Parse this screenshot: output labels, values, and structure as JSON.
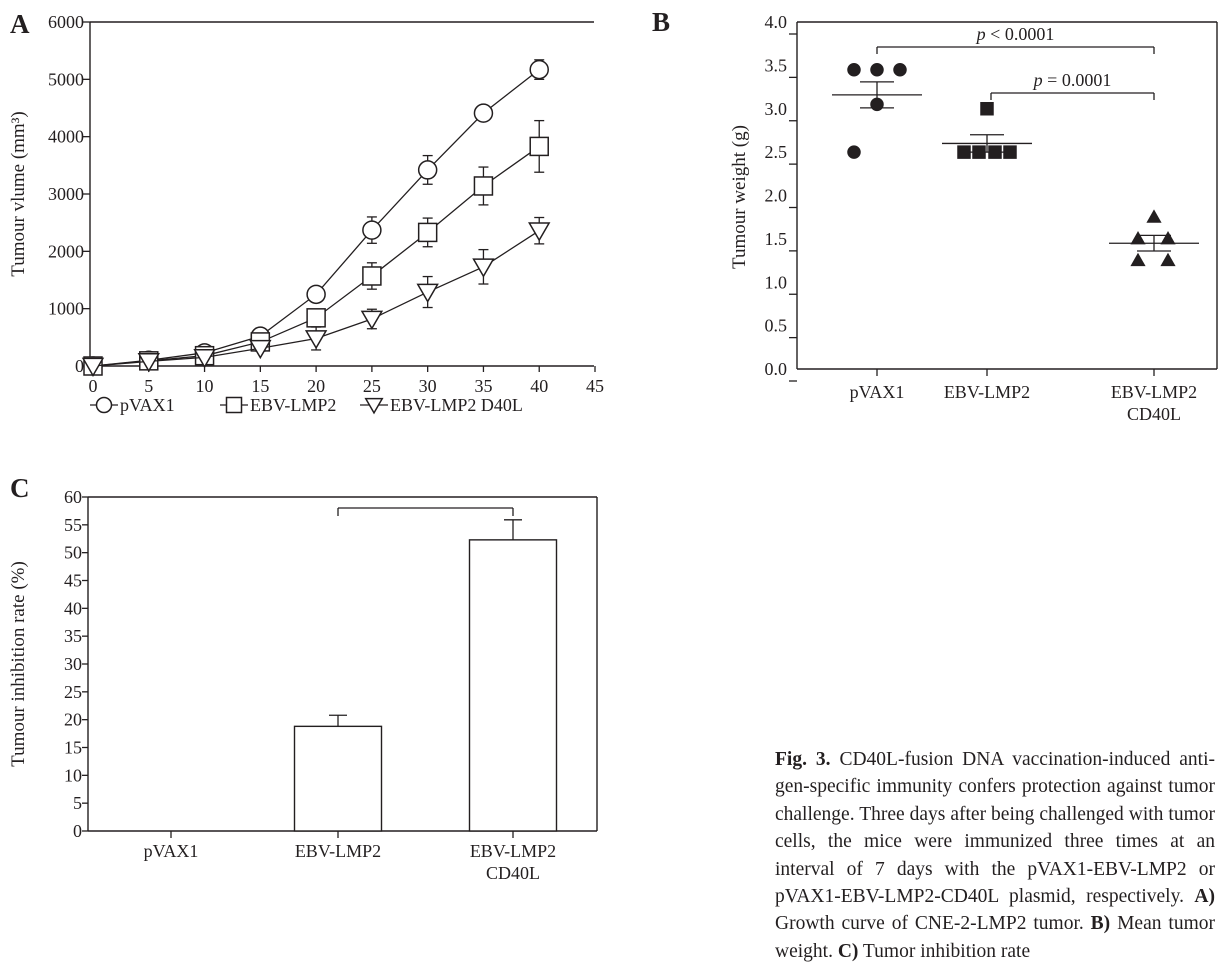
{
  "caption": {
    "label": "Fig. 3.",
    "text": "CD40L-fusion DNA vaccination-induced anti­gen-specific immunity confers protection against tumor challenge. Three days after being challenged with tumor cells, the mice were immunized three times at an interval of 7 days with the pVAX1-EBV-LMP2 or pVAX1-EBV-LMP2-CD40L plasmid, respectively. ",
    "a_label": "A)",
    "a_text": " Growth curve of CNE-2-LMP2 tumor. ",
    "b_label": "B)",
    "b_text": " Mean tumor weight. ",
    "c_label": "C)",
    "c_text": " Tumor inhibition rate"
  },
  "chart_data": [
    {
      "panel": "A",
      "type": "line",
      "ylabel": "Tumour vlume (mm³)",
      "x": [
        0,
        5,
        10,
        15,
        20,
        25,
        30,
        35,
        40
      ],
      "x_ticks": [
        "0",
        "5",
        "10",
        "15",
        "20",
        "25",
        "30",
        "35",
        "40",
        "45"
      ],
      "y_ticks": [
        "0",
        "1000",
        "2000",
        "3000",
        "4000",
        "5000",
        "6000"
      ],
      "xlim": [
        0,
        45
      ],
      "ylim": [
        0,
        6000
      ],
      "legend_position": "bottom",
      "series": [
        {
          "name": "pVAX1",
          "marker": "circle",
          "values": [
            0,
            100,
            230,
            520,
            1250,
            2370,
            3420,
            4410,
            5170
          ],
          "errors": [
            0,
            0,
            30,
            60,
            80,
            230,
            250,
            0,
            170
          ]
        },
        {
          "name": "EBV-LMP2",
          "marker": "square",
          "values": [
            0,
            90,
            180,
            420,
            840,
            1570,
            2330,
            3140,
            3830
          ],
          "errors": [
            0,
            0,
            30,
            70,
            120,
            230,
            250,
            330,
            450
          ]
        },
        {
          "name": "EBV-LMP2 D40L",
          "marker": "triangle-down",
          "values": [
            0,
            80,
            150,
            310,
            480,
            820,
            1290,
            1730,
            2360
          ],
          "errors": [
            0,
            0,
            30,
            50,
            200,
            170,
            270,
            300,
            230
          ]
        }
      ]
    },
    {
      "panel": "B",
      "type": "scatter",
      "ylabel": "Tumour weight (g)",
      "categories": [
        "pVAX1",
        "EBV-LMP2",
        "EBV-LMP2\nCD40L"
      ],
      "y_ticks": [
        "0.0",
        "0.5",
        "1.0",
        "1.5",
        "2.0",
        "2.5",
        "3.0",
        "3.5",
        "4.0"
      ],
      "ylim": [
        0,
        4.0
      ],
      "groups": [
        {
          "name": "pVAX1",
          "marker": "circle",
          "points": [
            3.45,
            3.45,
            3.45,
            3.05,
            2.5
          ],
          "mean": 3.16,
          "sem": 0.15
        },
        {
          "name": "EBV-LMP2",
          "marker": "square",
          "points": [
            3.0,
            2.5,
            2.5,
            2.5,
            2.5
          ],
          "mean": 2.6,
          "sem": 0.1
        },
        {
          "name": "EBV-LMP2 CD40L",
          "marker": "triangle",
          "points": [
            1.75,
            1.5,
            1.5,
            1.25,
            1.25
          ],
          "mean": 1.45,
          "sem": 0.09
        }
      ],
      "annotations": [
        {
          "text": "p < 0.0001",
          "between": [
            0,
            2
          ]
        },
        {
          "text": "p = 0.0001",
          "between": [
            1,
            2
          ]
        }
      ]
    },
    {
      "panel": "C",
      "type": "bar",
      "ylabel": "Tumour inhibition rate (%)",
      "categories": [
        "pVAX1",
        "EBV-LMP2",
        "EBV-LMP2\nCD40L"
      ],
      "values": [
        0,
        18.8,
        52.3
      ],
      "errors": [
        0,
        2.0,
        3.6
      ],
      "y_ticks": [
        "0",
        "5",
        "10",
        "15",
        "20",
        "25",
        "30",
        "35",
        "40",
        "45",
        "50",
        "55",
        "60"
      ],
      "ylim": [
        0,
        60
      ],
      "bracket_between": [
        1,
        2
      ]
    }
  ],
  "panel_labels": {
    "a": "A",
    "b": "B",
    "c": "C"
  }
}
